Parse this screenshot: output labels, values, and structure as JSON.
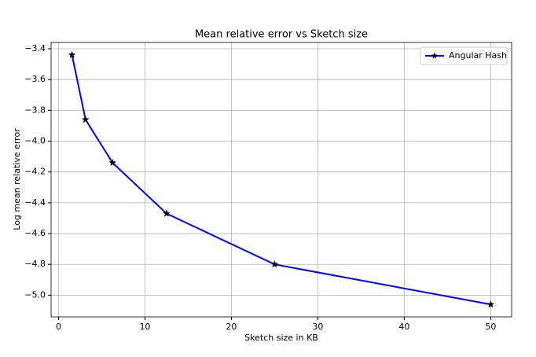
{
  "chart_data": {
    "type": "line",
    "title": "Mean relative error vs Sketch size",
    "x_label": "Sketch size in KB",
    "y_label": "Log mean relative error",
    "x": [
      1.5625,
      3.125,
      6.25,
      12.5,
      25,
      50
    ],
    "series": [
      {
        "name": "Angular Hash",
        "color": "#0000ff",
        "marker_color": "#000000",
        "values": [
          -3.44,
          -3.86,
          -4.14,
          -4.47,
          -4.8,
          -5.06
        ]
      }
    ],
    "xlim": [
      -0.86,
      52.42
    ],
    "ylim": [
      -5.141,
      -3.359
    ],
    "xticks": [
      0,
      10,
      20,
      30,
      40,
      50
    ],
    "yticks": [
      {
        "value": -5.0,
        "label": "−5.0"
      },
      {
        "value": -4.8,
        "label": "−4.8"
      },
      {
        "value": -4.6,
        "label": "−4.6"
      },
      {
        "value": -4.4,
        "label": "−4.4"
      },
      {
        "value": -4.2,
        "label": "−4.2"
      },
      {
        "value": -4.0,
        "label": "−4.0"
      },
      {
        "value": -3.8,
        "label": "−3.8"
      },
      {
        "value": -3.6,
        "label": "−3.6"
      },
      {
        "value": -3.4,
        "label": "−3.4"
      }
    ],
    "grid": true,
    "legend": "upper-right"
  }
}
